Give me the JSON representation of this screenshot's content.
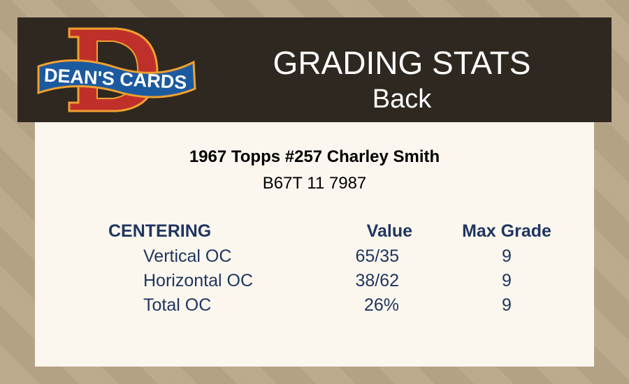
{
  "header": {
    "logo_text": "DEAN'S CARDS",
    "title": "GRADING STATS",
    "subtitle": "Back"
  },
  "card": {
    "name": "1967 Topps #257 Charley Smith",
    "code": "B67T 11 7987"
  },
  "table": {
    "section": "CENTERING",
    "col_value": "Value",
    "col_max": "Max Grade",
    "rows": [
      {
        "label": "Vertical OC",
        "value": "65/35",
        "max": "9"
      },
      {
        "label": "Horizontal OC",
        "value": "38/62",
        "max": "9"
      },
      {
        "label": "Total OC",
        "value": "26%",
        "max": "9"
      }
    ]
  },
  "colors": {
    "header_bg": "#2f2820",
    "panel_bg": "#fcf7ee",
    "text_navy": "#1f3560",
    "logo_red": "#c0302a",
    "logo_blue": "#1c5aa0",
    "logo_orange": "#f0a030"
  }
}
